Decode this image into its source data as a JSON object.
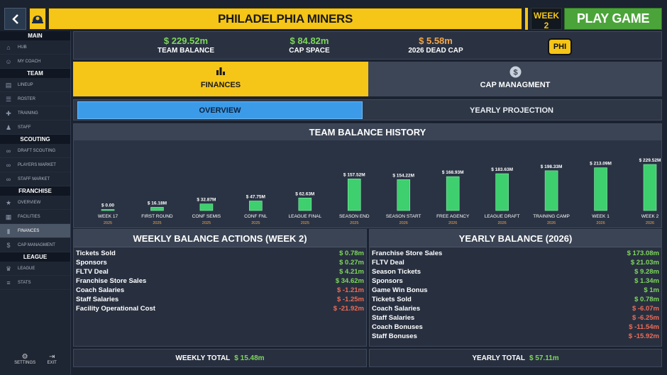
{
  "header": {
    "team_name": "PHILADELPHIA MINERS",
    "week": "WEEK 2",
    "year": "2026",
    "play_label": "PLAY GAME",
    "back_icon": "chevron-left-icon"
  },
  "sidebar": {
    "sections": [
      {
        "title": "MAIN",
        "items": [
          {
            "label": "HUB",
            "icon": "home-icon"
          },
          {
            "label": "MY COACH",
            "icon": "person-icon"
          }
        ]
      },
      {
        "title": "TEAM",
        "items": [
          {
            "label": "LINEUP",
            "icon": "lineup-icon"
          },
          {
            "label": "ROSTER",
            "icon": "roster-icon"
          },
          {
            "label": "TRAINING",
            "icon": "training-icon"
          },
          {
            "label": "STAFF",
            "icon": "staff-icon"
          }
        ]
      },
      {
        "title": "SCOUTING",
        "items": [
          {
            "label": "DRAFT SCOUTING",
            "icon": "binoculars-icon"
          },
          {
            "label": "PLAYERS MARKET",
            "icon": "binoculars-icon"
          },
          {
            "label": "STAFF MARKET",
            "icon": "binoculars-icon"
          }
        ]
      },
      {
        "title": "FRANCHISE",
        "items": [
          {
            "label": "OVERVIEW",
            "icon": "star-icon"
          },
          {
            "label": "FACILITIES",
            "icon": "building-icon"
          },
          {
            "label": "FINANCES",
            "icon": "bar-chart-icon"
          },
          {
            "label": "CAP MANAGMENT",
            "icon": "dollar-icon"
          }
        ]
      },
      {
        "title": "LEAGUE",
        "items": [
          {
            "label": "LEAGUE",
            "icon": "trophy-icon"
          },
          {
            "label": "STATS",
            "icon": "stats-icon"
          }
        ]
      }
    ],
    "settings_label": "SETTINGS",
    "exit_label": "EXIT"
  },
  "stats": {
    "team_balance": {
      "value": "$ 229.52m",
      "label": "TEAM BALANCE"
    },
    "cap_space": {
      "value": "$ 84.82m",
      "label": "CAP SPACE"
    },
    "dead_cap": {
      "value": "$ 5.58m",
      "label": "2026 DEAD CAP"
    },
    "badge": "PHI"
  },
  "tabs": {
    "finances": "FINANCES",
    "cap": "CAP MANAGMENT"
  },
  "subtabs": {
    "overview": "OVERVIEW",
    "yearly": "YEARLY PROJECTION"
  },
  "chart_title": "TEAM BALANCE HISTORY",
  "chart_data": {
    "type": "bar",
    "title": "TEAM BALANCE HISTORY",
    "categories": [
      "WEEK 17",
      "FIRST ROUND",
      "CONF SEMIS",
      "CONF FNL",
      "LEAGUE FINAL",
      "SEASON END",
      "SEASON START",
      "FREE AGENCY",
      "LEAGUE DRAFT",
      "TRAINING CAMP",
      "WEEK 1",
      "WEEK 2"
    ],
    "years": [
      "2025",
      "2025",
      "2025",
      "2025",
      "2025",
      "2025",
      "2026",
      "2026",
      "2026",
      "2026",
      "2026",
      "2026"
    ],
    "values": [
      0.0,
      16.18,
      32.87,
      47.75,
      62.63,
      157.52,
      154.22,
      168.93,
      183.63,
      198.33,
      213.09,
      229.52
    ],
    "labels": [
      "$ 0.00",
      "$ 16.18M",
      "$ 32.87M",
      "$ 47.75M",
      "$ 62.63M",
      "$ 157.52M",
      "$ 154.22M",
      "$ 168.93M",
      "$ 183.63M",
      "$ 198.33M",
      "$ 213.09M",
      "$ 229.52M"
    ],
    "ylim": [
      0,
      229.52
    ],
    "color": "#3ecf6e"
  },
  "weekly": {
    "title": "WEEKLY BALANCE ACTIONS (WEEK 2)",
    "rows": [
      {
        "name": "Tickets Sold",
        "value": "$ 0.78m",
        "sign": "pos"
      },
      {
        "name": "Sponsors",
        "value": "$ 0.27m",
        "sign": "pos"
      },
      {
        "name": "FLTV Deal",
        "value": "$ 4.21m",
        "sign": "pos"
      },
      {
        "name": "Franchise Store Sales",
        "value": "$ 34.62m",
        "sign": "pos"
      },
      {
        "name": "Coach Salaries",
        "value": "$ -1.21m",
        "sign": "neg"
      },
      {
        "name": "Staff Salaries",
        "value": "$ -1.25m",
        "sign": "neg"
      },
      {
        "name": "Facility Operational Cost",
        "value": "$ -21.92m",
        "sign": "neg"
      }
    ],
    "total_label": "WEEKLY TOTAL",
    "total_value": "$ 15.48m"
  },
  "yearly": {
    "title": "YEARLY BALANCE (2026)",
    "rows": [
      {
        "name": "Franchise Store Sales",
        "value": "$ 173.08m",
        "sign": "pos"
      },
      {
        "name": "FLTV Deal",
        "value": "$ 21.03m",
        "sign": "pos"
      },
      {
        "name": "Season Tickets",
        "value": "$ 9.28m",
        "sign": "pos"
      },
      {
        "name": "Sponsors",
        "value": "$ 1.34m",
        "sign": "pos"
      },
      {
        "name": "Game Win Bonus",
        "value": "$ 1m",
        "sign": "pos"
      },
      {
        "name": "Tickets Sold",
        "value": "$ 0.78m",
        "sign": "pos"
      },
      {
        "name": "Coach Salaries",
        "value": "$ -6.07m",
        "sign": "neg"
      },
      {
        "name": "Staff Salaries",
        "value": "$ -6.25m",
        "sign": "neg"
      },
      {
        "name": "Coach Bonuses",
        "value": "$ -11.54m",
        "sign": "neg"
      },
      {
        "name": "Staff Bonuses",
        "value": "$ -15.92m",
        "sign": "neg"
      }
    ],
    "total_label": "YEARLY TOTAL",
    "total_value": "$ 57.11m"
  },
  "colors": {
    "accent_yellow": "#f5c518",
    "play_green": "#4ba43a",
    "positive": "#7ed85a",
    "negative": "#ef6b55",
    "active_blue": "#3c9be8"
  }
}
